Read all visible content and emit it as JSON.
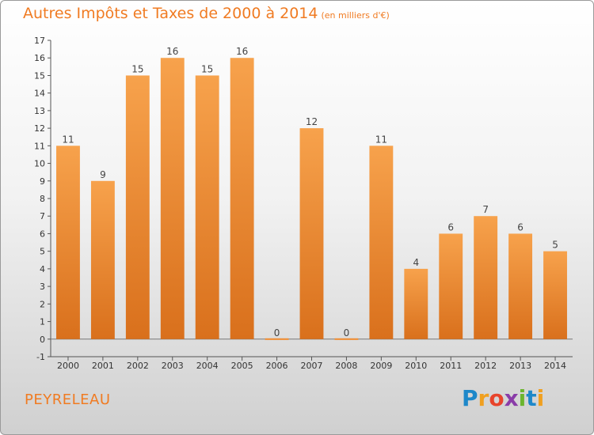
{
  "chart_data": {
    "type": "bar",
    "title": "Autres Impôts et Taxes de 2000 à 2014",
    "subtitle": "(en milliers d'€)",
    "categories": [
      "2000",
      "2001",
      "2002",
      "2003",
      "2004",
      "2005",
      "2006",
      "2007",
      "2008",
      "2009",
      "2010",
      "2011",
      "2012",
      "2013",
      "2014"
    ],
    "values": [
      11,
      9,
      15,
      16,
      15,
      16,
      0,
      12,
      0,
      11,
      4,
      6,
      7,
      6,
      5
    ],
    "ylim": [
      -1,
      17
    ],
    "yticks": [
      "-1",
      "0",
      "1",
      "2",
      "3",
      "4",
      "5",
      "6",
      "7",
      "8",
      "9",
      "10",
      "11",
      "12",
      "13",
      "14",
      "15",
      "16",
      "17"
    ],
    "xlabel": "",
    "ylabel": "",
    "grid": false,
    "bar_color": "#f08a2c"
  },
  "footer": {
    "commune": "PEYRELEAU",
    "logo": {
      "letters": [
        "P",
        "r",
        "o",
        "x",
        "i",
        "t",
        "i"
      ],
      "colors": [
        "#1e88c9",
        "#f0a020",
        "#e8442b",
        "#8a3ca8",
        "#6cb52e",
        "#1e88c9",
        "#f0a020"
      ]
    }
  }
}
